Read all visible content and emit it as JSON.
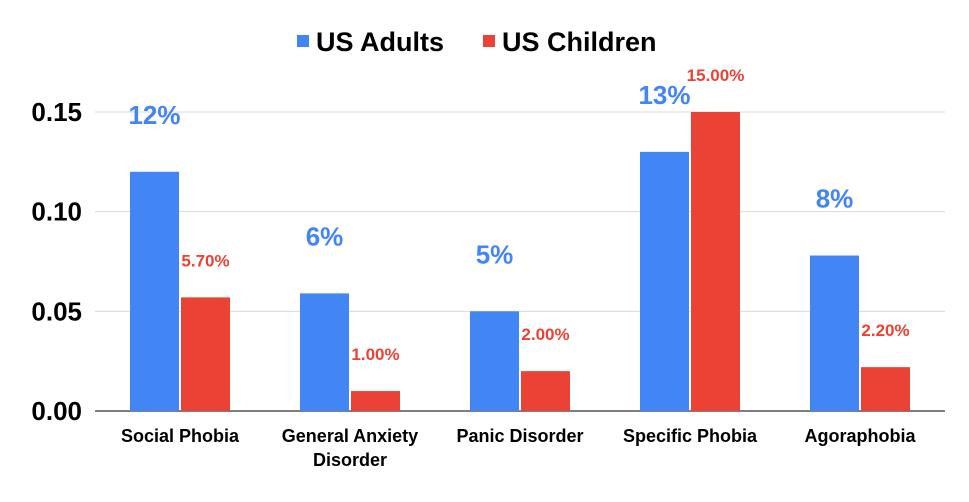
{
  "chart_data": {
    "type": "bar",
    "categories": [
      "Social Phobia",
      "General Anxiety Disorder",
      "Panic Disorder",
      "Specific Phobia",
      "Agoraphobia"
    ],
    "category_label_lines": [
      [
        "Social Phobia"
      ],
      [
        "General Anxiety",
        "Disorder"
      ],
      [
        "Panic Disorder"
      ],
      [
        "Specific Phobia"
      ],
      [
        "Agoraphobia"
      ]
    ],
    "series": [
      {
        "name": "US Adults",
        "color": "#4285f4",
        "values": [
          0.12,
          0.059,
          0.05,
          0.13,
          0.078
        ],
        "data_labels": [
          "12%",
          "6%",
          "5%",
          "13%",
          "8%"
        ]
      },
      {
        "name": "US Children",
        "color": "#ea4335",
        "values": [
          0.057,
          0.01,
          0.02,
          0.15,
          0.022
        ],
        "data_labels": [
          "5.70%",
          "1.00%",
          "2.00%",
          "15.00%",
          "2.20%"
        ]
      }
    ],
    "y_ticks": [
      "0.00",
      "0.05",
      "0.10",
      "0.15"
    ],
    "y_tick_values": [
      0,
      0.05,
      0.1,
      0.15
    ],
    "ylim": [
      0,
      0.15
    ],
    "grid": true,
    "legend_position": "top-center",
    "title": "",
    "xlabel": "",
    "ylabel": ""
  }
}
